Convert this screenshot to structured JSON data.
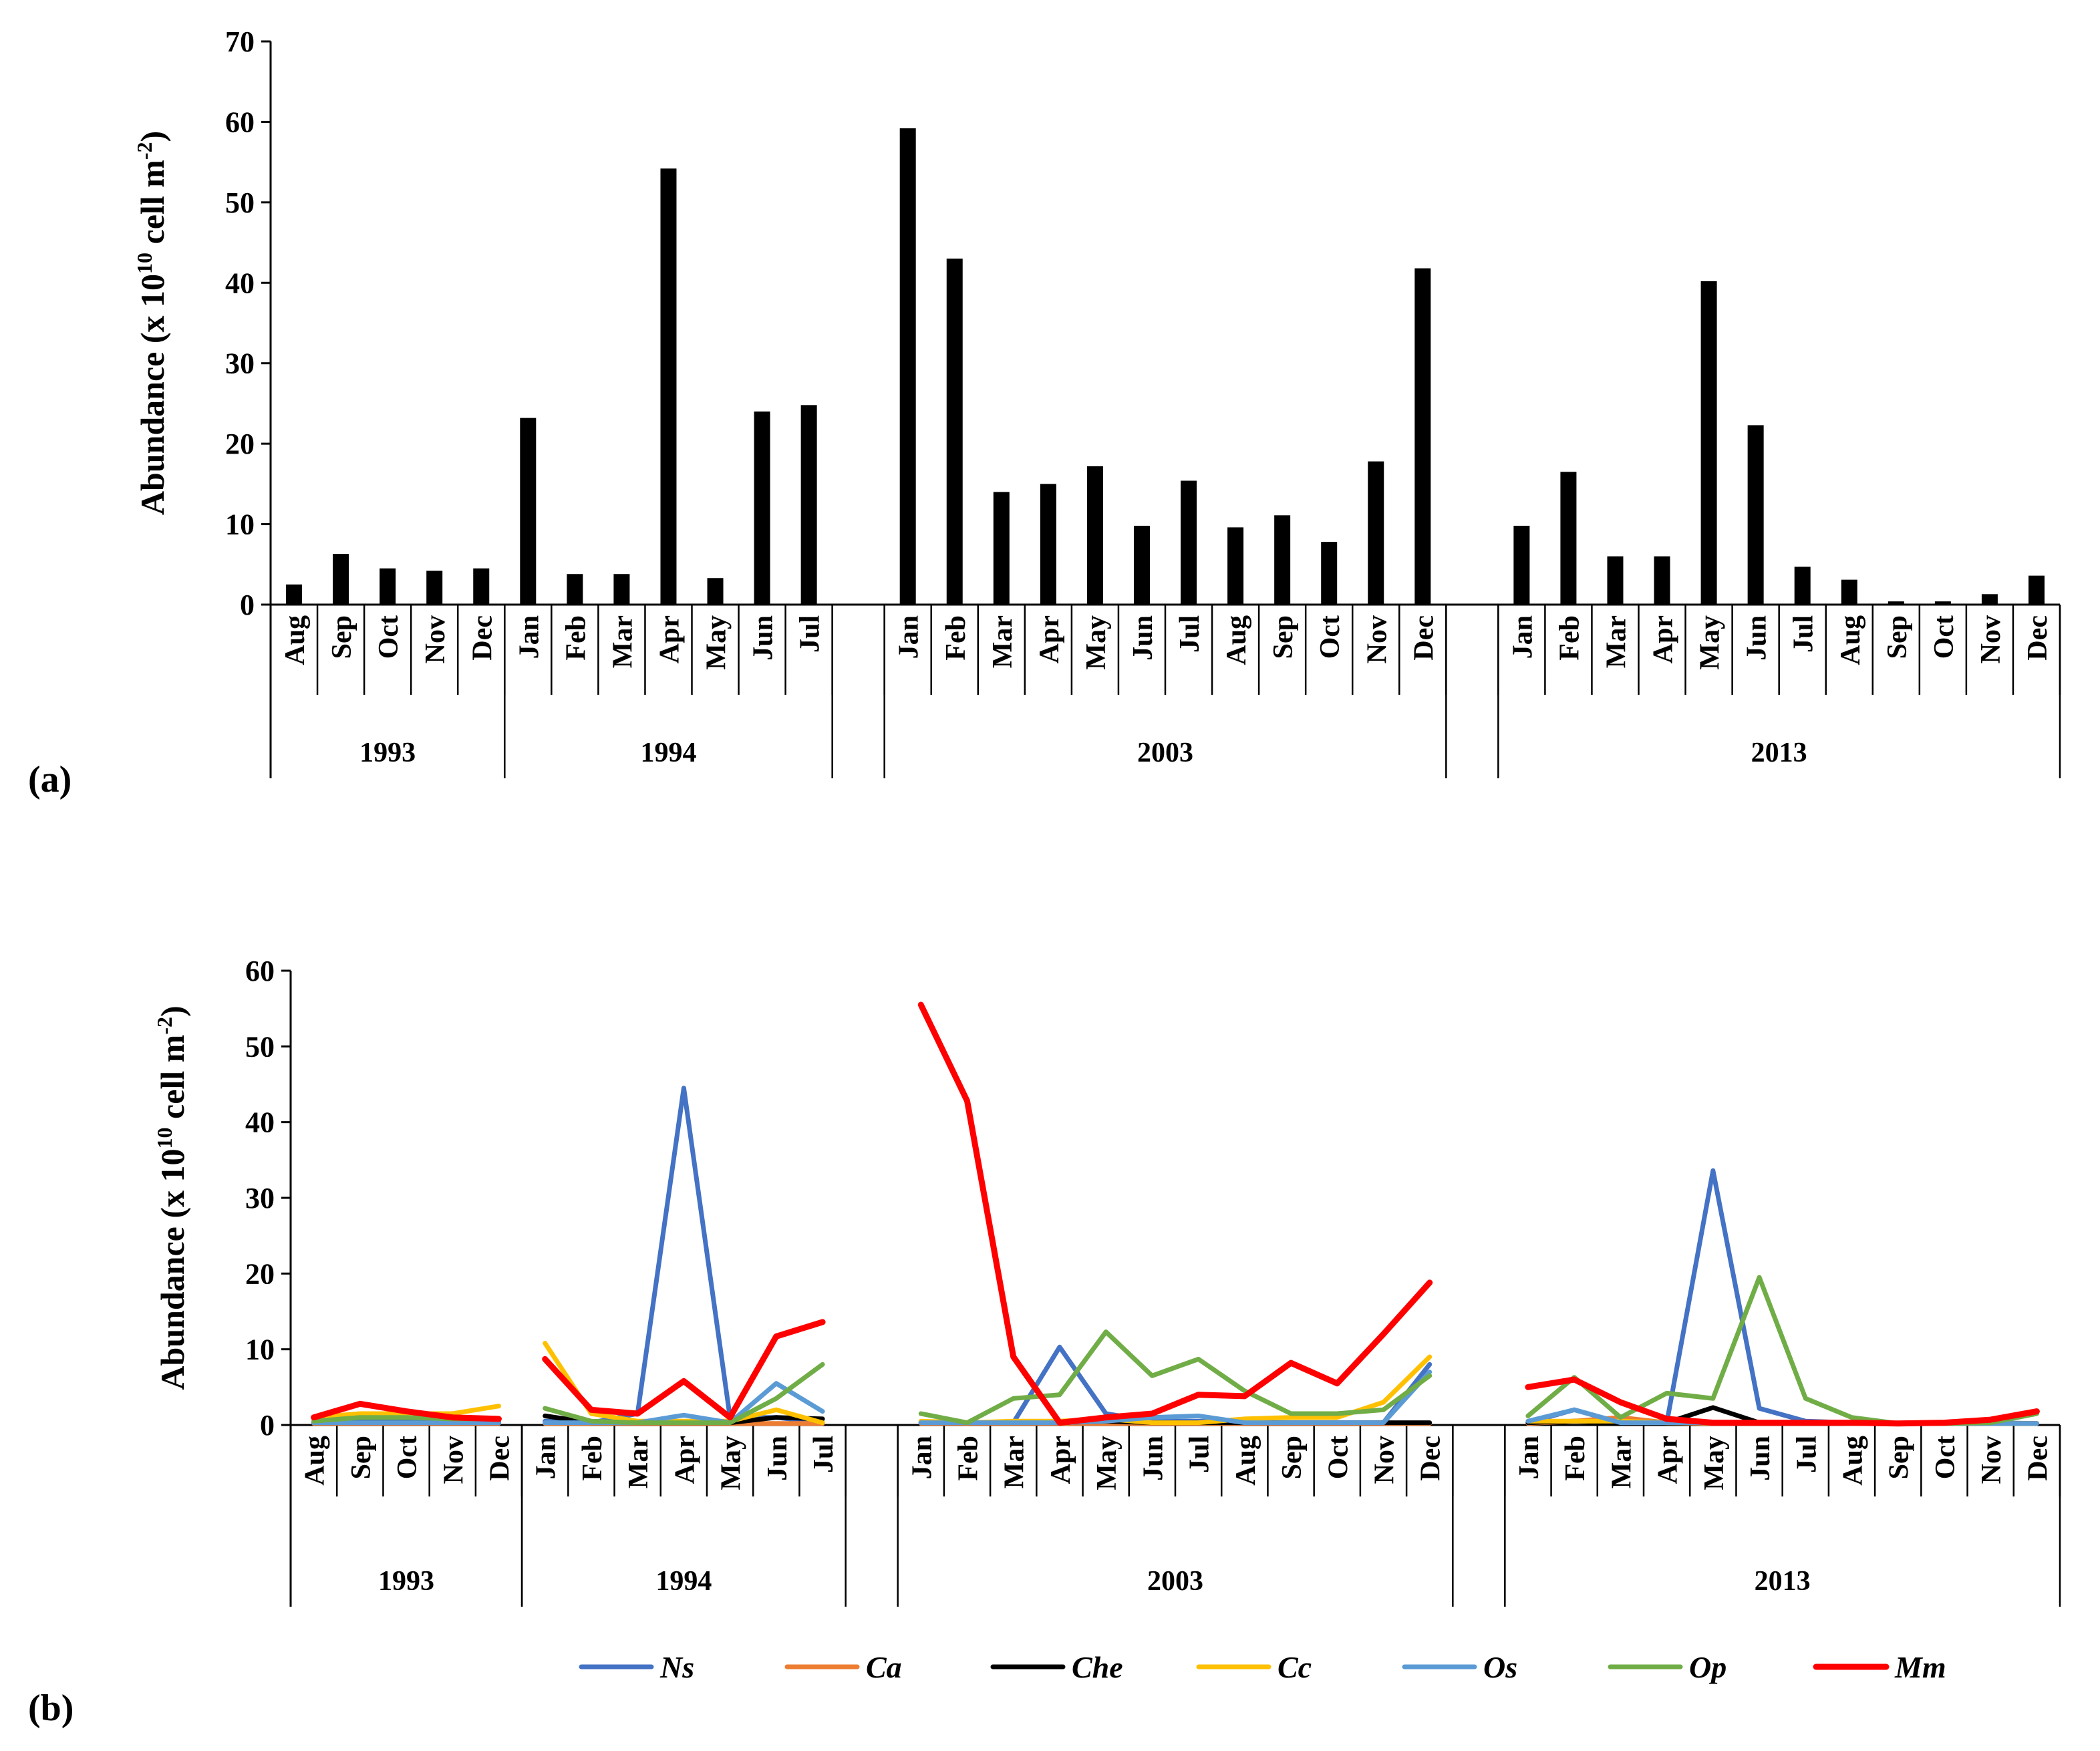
{
  "chart_data": [
    {
      "type": "bar",
      "panel_label": "(a)",
      "ylabel": "Abundance (x 10",
      "ylabel_exp": "10",
      "ylabel_tail": " cell m",
      "ylabel_exp2": "-2",
      "ylabel_close": ")",
      "ylim": [
        0,
        70
      ],
      "yticks": [
        "0",
        "10",
        "20",
        "30",
        "40",
        "50",
        "60",
        "70"
      ],
      "groups": [
        {
          "year": "1993",
          "months": [
            "Aug",
            "Sep",
            "Oct",
            "Nov",
            "Dec"
          ],
          "values": [
            2.5,
            6.3,
            4.5,
            4.2,
            4.5
          ]
        },
        {
          "year": "1994",
          "months": [
            "Jan",
            "Feb",
            "Mar",
            "Apr",
            "May",
            "Jun",
            "Jul"
          ],
          "values": [
            23.2,
            3.8,
            3.8,
            54.2,
            3.3,
            24,
            24.8
          ]
        },
        {
          "year": "2003",
          "months": [
            "Jan",
            "Feb",
            "Mar",
            "Apr",
            "May",
            "Jun",
            "Jul",
            "Aug",
            "Sep",
            "Oct",
            "Nov",
            "Dec"
          ],
          "values": [
            59.2,
            43,
            14,
            15,
            17.2,
            9.8,
            15.4,
            9.6,
            11.1,
            7.8,
            17.8,
            41.8
          ]
        },
        {
          "year": "2013",
          "months": [
            "Jan",
            "Feb",
            "Mar",
            "Apr",
            "May",
            "Jun",
            "Jul",
            "Aug",
            "Sep",
            "Oct",
            "Nov",
            "Dec"
          ],
          "values": [
            9.8,
            16.5,
            6,
            6,
            40.2,
            22.3,
            4.7,
            3.1,
            0.4,
            0.4,
            1.3,
            3.6
          ]
        }
      ]
    },
    {
      "type": "line",
      "panel_label": "(b)",
      "ylabel": "Abundance (x 10",
      "ylabel_exp": "10",
      "ylabel_tail": " cell m",
      "ylabel_exp2": "-2",
      "ylabel_close": ")",
      "ylim": [
        0,
        60
      ],
      "yticks": [
        "0",
        "10",
        "20",
        "30",
        "40",
        "50",
        "60"
      ],
      "legend_position": "bottom",
      "groups": [
        {
          "year": "1993",
          "months": [
            "Aug",
            "Sep",
            "Oct",
            "Nov",
            "Dec"
          ]
        },
        {
          "year": "1994",
          "months": [
            "Jan",
            "Feb",
            "Mar",
            "Apr",
            "May",
            "Jun",
            "Jul"
          ]
        },
        {
          "year": "2003",
          "months": [
            "Jan",
            "Feb",
            "Mar",
            "Apr",
            "May",
            "Jun",
            "Jul",
            "Aug",
            "Sep",
            "Oct",
            "Nov",
            "Dec"
          ]
        },
        {
          "year": "2013",
          "months": [
            "Jan",
            "Feb",
            "Mar",
            "Apr",
            "May",
            "Jun",
            "Jul",
            "Aug",
            "Sep",
            "Oct",
            "Nov",
            "Dec"
          ]
        }
      ],
      "series": [
        {
          "name": "Ns",
          "color": "#4472C4",
          "values": [
            [
              0.3,
              0.5,
              0.5,
              0.3,
              0.5
            ],
            [
              0.5,
              0.3,
              1.5,
              44.5,
              1.0,
              1.0,
              0.3
            ],
            [
              0.3,
              0.3,
              0.3,
              10.3,
              1.5,
              0.5,
              0.5,
              0.3,
              0.3,
              0.3,
              0.3,
              8.0
            ],
            [
              0.3,
              2.0,
              0.3,
              0.3,
              33.6,
              2.2,
              0.5,
              0.3,
              0.2,
              0.2,
              0.3,
              0.2
            ]
          ]
        },
        {
          "name": "Ca",
          "color": "#ED7D31",
          "values": [
            [
              0.2,
              0.2,
              0.2,
              0.2,
              0.2
            ],
            [
              0.2,
              0.2,
              0.2,
              0.2,
              0.2,
              0.2,
              0.2
            ],
            [
              0.2,
              0.2,
              0.2,
              0.2,
              0.2,
              0.2,
              0.2,
              0.2,
              0.2,
              0.2,
              0.2,
              0.2
            ],
            [
              0.2,
              0.5,
              1.0,
              0.3,
              0.2,
              0.2,
              0.2,
              0.2,
              0.2,
              0.2,
              0.2,
              0.2
            ]
          ]
        },
        {
          "name": "Che",
          "color": "#000000",
          "values": [
            [
              0.3,
              0.3,
              0.3,
              0.3,
              0.3
            ],
            [
              1.2,
              0.3,
              0.3,
              0.3,
              0.3,
              1.0,
              0.8
            ],
            [
              0.3,
              0.3,
              0.3,
              0.3,
              0.5,
              0.3,
              0.3,
              0.3,
              0.3,
              0.3,
              0.3,
              0.3
            ],
            [
              0.3,
              0.5,
              0.3,
              0.3,
              2.3,
              0.3,
              0.3,
              0.3,
              0.2,
              0.2,
              0.2,
              0.2
            ]
          ]
        },
        {
          "name": "Cc",
          "color": "#FFC000",
          "values": [
            [
              1.0,
              1.5,
              1.5,
              1.5,
              2.5
            ],
            [
              10.8,
              1.5,
              0.5,
              0.5,
              0.5,
              2.0,
              0.3
            ],
            [
              0.5,
              0.3,
              0.5,
              0.5,
              0.8,
              0.3,
              0.3,
              0.8,
              1.0,
              1.0,
              3.0,
              9.0
            ],
            [
              0.5,
              0.5,
              0.5,
              0.3,
              0.3,
              0.3,
              0.3,
              0.2,
              0.2,
              0.2,
              0.2,
              0.2
            ]
          ]
        },
        {
          "name": "Os",
          "color": "#5B9BD5",
          "values": [
            [
              0.3,
              0.3,
              0.3,
              0.3,
              0.3
            ],
            [
              0.3,
              0.3,
              0.3,
              1.3,
              0.3,
              5.5,
              1.8
            ],
            [
              0.3,
              0.3,
              0.3,
              0.3,
              0.5,
              1.0,
              1.2,
              0.3,
              0.3,
              0.3,
              0.3,
              7.0
            ],
            [
              0.5,
              2.0,
              0.3,
              0.3,
              0.3,
              0.3,
              0.3,
              0.2,
              0.2,
              0.2,
              0.2,
              0.2
            ]
          ]
        },
        {
          "name": "Op",
          "color": "#70AD47",
          "values": [
            [
              0.5,
              1.0,
              1.0,
              0.8,
              0.8
            ],
            [
              2.2,
              0.5,
              0.3,
              0.3,
              0.3,
              3.5,
              8.0
            ],
            [
              1.5,
              0.3,
              3.5,
              4.0,
              12.3,
              6.5,
              8.7,
              4.5,
              1.5,
              1.5,
              2.0,
              6.5
            ],
            [
              1.2,
              6.3,
              1.0,
              4.2,
              3.5,
              19.5,
              3.5,
              1.0,
              0.2,
              0.2,
              0.3,
              1.5
            ]
          ]
        },
        {
          "name": "Mm",
          "color": "#FF0000",
          "values": [
            [
              1.0,
              2.8,
              1.8,
              1.0,
              0.8
            ],
            [
              8.7,
              2.0,
              1.5,
              5.8,
              1.0,
              11.7,
              13.6
            ],
            [
              55.5,
              42.8,
              9.0,
              0.3,
              1.0,
              1.5,
              4.0,
              3.8,
              8.2,
              5.5,
              12.0,
              18.8
            ],
            [
              5.0,
              6.0,
              3.0,
              0.8,
              0.3,
              0.3,
              0.3,
              0.3,
              0.2,
              0.3,
              0.7,
              1.8
            ]
          ]
        }
      ]
    }
  ]
}
